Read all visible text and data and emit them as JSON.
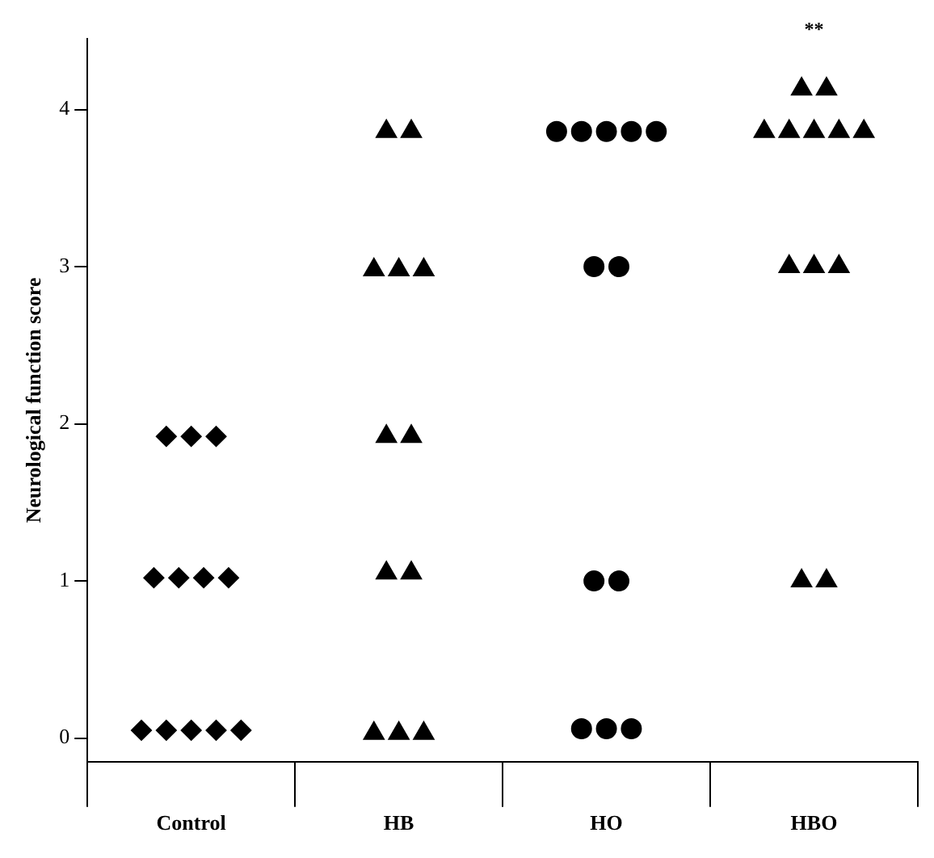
{
  "chart_data": {
    "type": "scatter",
    "ylabel": "Neurological function score",
    "categories": [
      "Control",
      "HB",
      "HO",
      "HBO"
    ],
    "ylim": [
      -0.15,
      4.45
    ],
    "yticks": [
      0,
      1,
      2,
      3,
      4
    ],
    "grid": false,
    "legend": false,
    "annotations": [
      "**"
    ],
    "series": [
      {
        "type": "scatter",
        "marker": "diamond",
        "color": "#000000",
        "x": [
          "Control",
          "Control",
          "Control",
          "Control",
          "Control",
          "Control",
          "Control",
          "Control",
          "Control",
          "Control",
          "Control",
          "Control"
        ],
        "values": [
          0.05,
          0.05,
          0.05,
          0.05,
          0.05,
          1.02,
          1.02,
          1.02,
          1.02,
          1.92,
          1.92,
          1.92
        ]
      },
      {
        "type": "scatter",
        "marker": "triangle",
        "color": "#000000",
        "x": [
          "HB",
          "HB",
          "HB",
          "HB",
          "HB",
          "HB",
          "HB",
          "HB",
          "HB",
          "HB",
          "HB",
          "HB"
        ],
        "values": [
          0.03,
          0.03,
          0.03,
          1.05,
          1.05,
          1.92,
          1.92,
          2.98,
          2.98,
          2.98,
          3.86,
          3.86
        ]
      },
      {
        "type": "scatter",
        "marker": "circle",
        "color": "#000000",
        "x": [
          "HO",
          "HO",
          "HO",
          "HO",
          "HO",
          "HO",
          "HO",
          "HO",
          "HO",
          "HO",
          "HO",
          "HO"
        ],
        "values": [
          0.06,
          0.06,
          0.06,
          1.0,
          1.0,
          3.0,
          3.0,
          3.86,
          3.86,
          3.86,
          3.86,
          3.86
        ]
      },
      {
        "type": "scatter",
        "marker": "triangle",
        "color": "#000000",
        "x": [
          "HBO",
          "HBO",
          "HBO",
          "HBO",
          "HBO",
          "HBO",
          "HBO",
          "HBO",
          "HBO",
          "HBO",
          "HBO",
          "HBO"
        ],
        "values": [
          1.0,
          1.0,
          3.0,
          3.0,
          3.0,
          3.86,
          3.86,
          3.86,
          3.86,
          3.86,
          4.13,
          4.13
        ]
      }
    ]
  }
}
